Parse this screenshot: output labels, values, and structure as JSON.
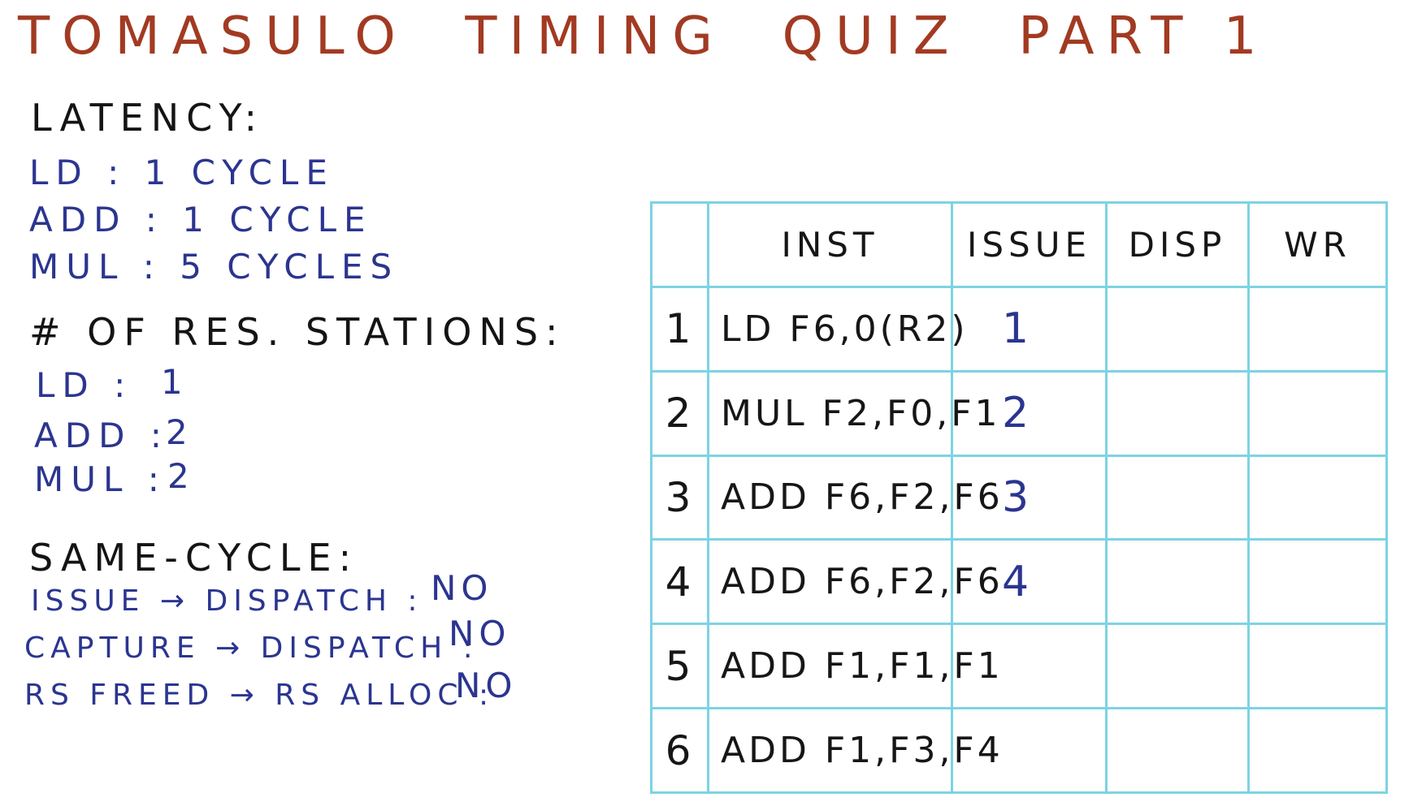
{
  "title": "TOMASULO  TIMING  QUIZ  PART 1",
  "latency": {
    "heading": "LATENCY:",
    "items": [
      {
        "label": "LD : 1 CYCLE"
      },
      {
        "label": "ADD : 1 CYCLE"
      },
      {
        "label": "MUL : 5 CYCLES"
      }
    ]
  },
  "stations": {
    "heading": "# OF RES. STATIONS:",
    "items": [
      {
        "label": "LD :",
        "value": "1"
      },
      {
        "label": "ADD :",
        "value": "2"
      },
      {
        "label": "MUL :",
        "value": "2"
      }
    ]
  },
  "same_cycle": {
    "heading": "SAME-CYCLE:",
    "items": [
      {
        "label": "ISSUE → DISPATCH :",
        "value": "NO"
      },
      {
        "label": "CAPTURE → DISPATCH :",
        "value": "NO"
      },
      {
        "label": "RS FREED → RS ALLOC :",
        "value": "NO"
      }
    ]
  },
  "table": {
    "headers": [
      "",
      "INST",
      "ISSUE",
      "DISP",
      "WR"
    ],
    "rows": [
      {
        "num": "1",
        "inst": "LD F6,0(R2)",
        "issue": "1",
        "disp": "",
        "wr": ""
      },
      {
        "num": "2",
        "inst": "MUL F2,F0,F1",
        "issue": "2",
        "disp": "",
        "wr": ""
      },
      {
        "num": "3",
        "inst": "ADD F6,F2,F6",
        "issue": "3",
        "disp": "",
        "wr": ""
      },
      {
        "num": "4",
        "inst": "ADD F6,F2,F6",
        "issue": "4",
        "disp": "",
        "wr": ""
      },
      {
        "num": "5",
        "inst": "ADD F1,F1,F1",
        "issue": "",
        "disp": "",
        "wr": ""
      },
      {
        "num": "6",
        "inst": "ADD F1,F3,F4",
        "issue": "",
        "disp": "",
        "wr": ""
      }
    ]
  }
}
